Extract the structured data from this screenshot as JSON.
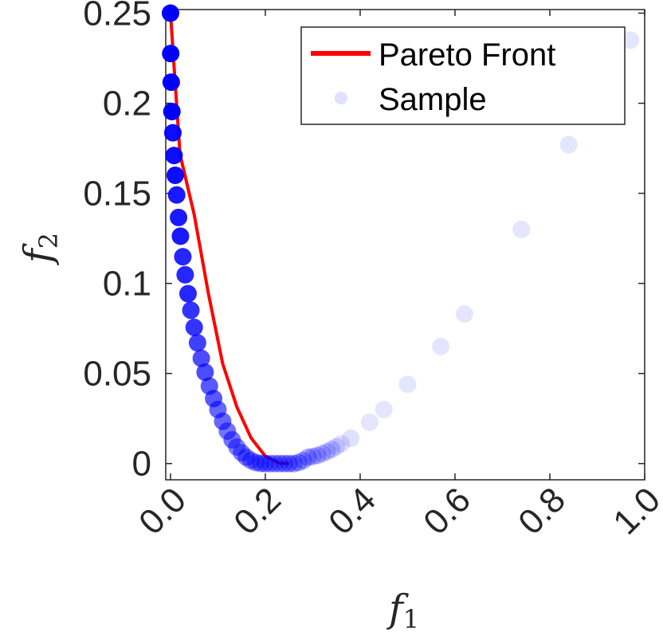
{
  "chart_data": {
    "type": "scatter",
    "xlabel": "f",
    "xlabel_sub": "1",
    "ylabel": "f",
    "ylabel_sub": "2",
    "xlim": [
      -0.01,
      1.0
    ],
    "ylim": [
      -0.009,
      0.252
    ],
    "xticks": [
      0.0,
      0.2,
      0.4,
      0.6,
      0.8,
      1.0
    ],
    "xtick_labels": [
      "0.0",
      "0.2",
      "0.4",
      "0.6",
      "0.8",
      "1.0"
    ],
    "yticks": [
      0,
      0.05,
      0.1,
      0.15,
      0.2,
      0.25
    ],
    "ytick_labels": [
      "0",
      "0.05",
      "0.1",
      "0.15",
      "0.2",
      "0.25"
    ],
    "legend": {
      "placement": "top-right",
      "entries": [
        {
          "label": "Pareto Front",
          "kind": "line",
          "color": "#ff0000"
        },
        {
          "label": "Sample",
          "kind": "marker",
          "color": "#0000ff"
        }
      ]
    },
    "series": [
      {
        "name": "Pareto Front",
        "kind": "line",
        "color": "#ff0000",
        "x": [
          0.0,
          0.02,
          0.05,
          0.08,
          0.11,
          0.14,
          0.17,
          0.2,
          0.23,
          0.25
        ],
        "y": [
          0.25,
          0.1717,
          0.1382,
          0.0943,
          0.0555,
          0.0314,
          0.0142,
          0.0041,
          0.0002,
          0.0
        ]
      },
      {
        "name": "Sample",
        "kind": "scatter",
        "color": "#0000ff",
        "x": [
          0.0,
          0.0005,
          0.0015,
          0.003,
          0.005,
          0.0075,
          0.01,
          0.013,
          0.017,
          0.021,
          0.026,
          0.031,
          0.037,
          0.043,
          0.05,
          0.057,
          0.065,
          0.073,
          0.082,
          0.091,
          0.1,
          0.11,
          0.12,
          0.13,
          0.14,
          0.15,
          0.16,
          0.17,
          0.18,
          0.19,
          0.2,
          0.21,
          0.22,
          0.23,
          0.24,
          0.25,
          0.26,
          0.27,
          0.28,
          0.29,
          0.3,
          0.31,
          0.32,
          0.33,
          0.34,
          0.35,
          0.36,
          0.38,
          0.42,
          0.45,
          0.5,
          0.57,
          0.62,
          0.74,
          0.84,
          0.97
        ],
        "y": [
          0.25,
          0.2276,
          0.2117,
          0.1954,
          0.1836,
          0.171,
          0.16,
          0.1491,
          0.1366,
          0.1262,
          0.1148,
          0.1048,
          0.0943,
          0.0851,
          0.0756,
          0.067,
          0.0584,
          0.0507,
          0.043,
          0.0361,
          0.03,
          0.0235,
          0.018,
          0.0132,
          0.0092,
          0.006,
          0.0035,
          0.0017,
          0.0006,
          0.0001,
          0.0,
          0.0,
          0.0,
          0.0,
          0.0,
          0.0,
          0.0,
          0.0006,
          0.0017,
          0.0035,
          0.0039,
          0.0045,
          0.0055,
          0.0066,
          0.0079,
          0.0094,
          0.011,
          0.014,
          0.023,
          0.03,
          0.044,
          0.065,
          0.083,
          0.13,
          0.177,
          0.235
        ],
        "opacity": [
          1.0,
          1.0,
          1.0,
          1.0,
          0.95,
          0.95,
          0.95,
          0.9,
          0.9,
          0.9,
          0.85,
          0.85,
          0.85,
          0.8,
          0.8,
          0.75,
          0.7,
          0.7,
          0.65,
          0.65,
          0.6,
          0.6,
          0.55,
          0.55,
          0.5,
          0.5,
          0.5,
          0.45,
          0.45,
          0.45,
          0.45,
          0.4,
          0.4,
          0.4,
          0.4,
          0.4,
          0.35,
          0.35,
          0.3,
          0.3,
          0.25,
          0.25,
          0.2,
          0.2,
          0.18,
          0.15,
          0.12,
          0.12,
          0.1,
          0.1,
          0.1,
          0.1,
          0.1,
          0.1,
          0.1,
          0.1
        ]
      }
    ]
  }
}
